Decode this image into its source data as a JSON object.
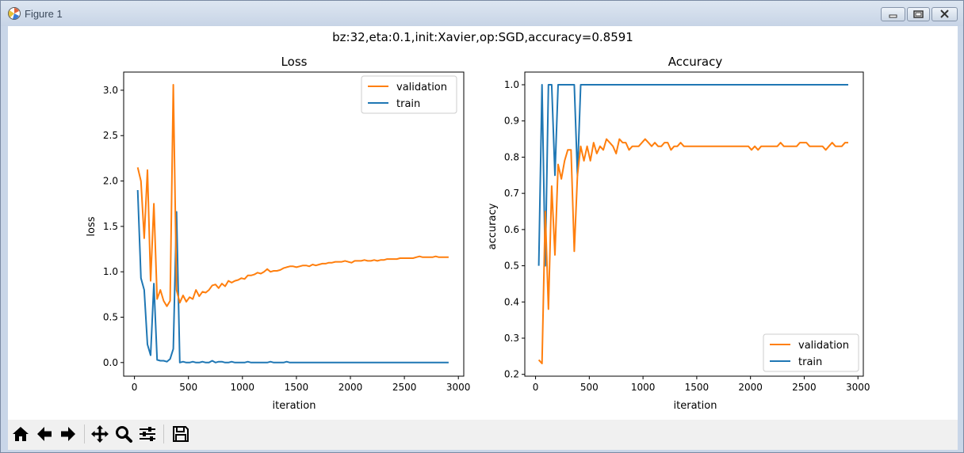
{
  "window": {
    "title": "Figure 1",
    "minimize_icon": "minimize-icon",
    "maximize_icon": "restore-icon",
    "close_icon": "close-icon"
  },
  "figure": {
    "suptitle": "bz:32,eta:0.1,init:Xavier,op:SGD,accuracy=0.8591"
  },
  "toolbar": {
    "buttons": [
      "home-icon",
      "back-arrow-icon",
      "forward-arrow-icon",
      "pan-icon",
      "zoom-icon",
      "configure-subplots-icon",
      "save-icon"
    ]
  },
  "chart_data": [
    {
      "type": "line",
      "title": "Loss",
      "xlabel": "iteration",
      "ylabel": "loss",
      "xlim": [
        -100,
        3050
      ],
      "ylim": [
        -0.15,
        3.2
      ],
      "xticks": [
        0,
        500,
        1000,
        1500,
        2000,
        2500,
        3000
      ],
      "yticks": [
        0.0,
        0.5,
        1.0,
        1.5,
        2.0,
        2.5,
        3.0
      ],
      "xtick_labels": [
        "0",
        "500",
        "1000",
        "1500",
        "2000",
        "2500",
        "3000"
      ],
      "ytick_labels": [
        "0.0",
        "0.5",
        "1.0",
        "1.5",
        "2.0",
        "2.5",
        "3.0"
      ],
      "legend_position": "top-right",
      "legend_order": [
        "validation",
        "train"
      ],
      "series": [
        {
          "name": "validation",
          "color": "#ff7f0e",
          "x": [
            30,
            60,
            90,
            120,
            150,
            180,
            210,
            240,
            270,
            300,
            330,
            360,
            390,
            420,
            450,
            480,
            510,
            540,
            570,
            600,
            630,
            660,
            690,
            720,
            750,
            780,
            810,
            840,
            870,
            900,
            930,
            960,
            990,
            1020,
            1050,
            1080,
            1110,
            1140,
            1170,
            1200,
            1230,
            1260,
            1290,
            1320,
            1350,
            1380,
            1410,
            1440,
            1470,
            1500,
            1530,
            1560,
            1590,
            1620,
            1650,
            1680,
            1710,
            1740,
            1770,
            1800,
            1830,
            1860,
            1890,
            1920,
            1950,
            1980,
            2010,
            2040,
            2070,
            2100,
            2130,
            2160,
            2190,
            2220,
            2250,
            2280,
            2310,
            2340,
            2370,
            2400,
            2430,
            2460,
            2490,
            2520,
            2550,
            2580,
            2610,
            2640,
            2670,
            2700,
            2730,
            2760,
            2790,
            2820,
            2850,
            2880,
            2910
          ],
          "values": [
            2.15,
            2.0,
            1.37,
            2.12,
            0.9,
            1.75,
            0.7,
            0.8,
            0.68,
            0.62,
            0.68,
            3.06,
            0.8,
            0.66,
            0.74,
            0.67,
            0.72,
            0.7,
            0.8,
            0.73,
            0.78,
            0.77,
            0.8,
            0.85,
            0.86,
            0.82,
            0.87,
            0.84,
            0.9,
            0.88,
            0.9,
            0.91,
            0.93,
            0.92,
            0.96,
            0.96,
            0.97,
            0.99,
            0.98,
            1.0,
            1.03,
            1.0,
            1.01,
            1.01,
            1.02,
            1.04,
            1.05,
            1.06,
            1.06,
            1.05,
            1.06,
            1.07,
            1.07,
            1.06,
            1.08,
            1.07,
            1.08,
            1.09,
            1.09,
            1.1,
            1.1,
            1.11,
            1.11,
            1.11,
            1.12,
            1.11,
            1.1,
            1.12,
            1.12,
            1.12,
            1.13,
            1.12,
            1.12,
            1.13,
            1.12,
            1.13,
            1.13,
            1.14,
            1.14,
            1.14,
            1.14,
            1.15,
            1.15,
            1.15,
            1.15,
            1.15,
            1.16,
            1.17,
            1.16,
            1.16,
            1.16,
            1.16,
            1.17,
            1.16,
            1.16,
            1.16,
            1.16
          ]
        },
        {
          "name": "train",
          "color": "#1f77b4",
          "x": [
            30,
            60,
            90,
            120,
            150,
            180,
            210,
            240,
            270,
            300,
            330,
            360,
            390,
            420,
            450,
            480,
            510,
            540,
            570,
            600,
            630,
            660,
            690,
            720,
            750,
            780,
            810,
            840,
            870,
            900,
            930,
            960,
            990,
            1020,
            1050,
            1080,
            1110,
            1140,
            1170,
            1200,
            1230,
            1260,
            1290,
            1320,
            1350,
            1380,
            1410,
            1440,
            1470,
            1500,
            1530,
            1560,
            1590,
            1620,
            1650,
            1680,
            1710,
            1740,
            1770,
            1800,
            1830,
            1860,
            1890,
            1920,
            1950,
            1980,
            2010,
            2040,
            2070,
            2100,
            2130,
            2160,
            2190,
            2220,
            2250,
            2280,
            2310,
            2340,
            2370,
            2400,
            2430,
            2460,
            2490,
            2520,
            2550,
            2580,
            2610,
            2640,
            2670,
            2700,
            2730,
            2760,
            2790,
            2820,
            2850,
            2880,
            2910
          ],
          "values": [
            1.9,
            0.93,
            0.8,
            0.2,
            0.08,
            0.87,
            0.03,
            0.02,
            0.02,
            0.01,
            0.04,
            0.15,
            1.66,
            0.0,
            0.01,
            0.0,
            0.0,
            0.01,
            0.0,
            0.0,
            0.01,
            0.0,
            0.0,
            0.02,
            0.0,
            0.01,
            0.01,
            0.0,
            0.0,
            0.01,
            0.0,
            0.0,
            0.0,
            0.0,
            0.01,
            0.0,
            0.0,
            0.0,
            0.0,
            0.0,
            0.0,
            0.01,
            0.0,
            0.0,
            0.0,
            0.0,
            0.01,
            0.0,
            0.0,
            0.0,
            0.0,
            0.0,
            0.0,
            0.0,
            0.0,
            0.0,
            0.0,
            0.0,
            0.0,
            0.0,
            0.0,
            0.0,
            0.0,
            0.0,
            0.0,
            0.0,
            0.0,
            0.0,
            0.0,
            0.0,
            0.0,
            0.0,
            0.0,
            0.0,
            0.0,
            0.0,
            0.0,
            0.0,
            0.0,
            0.0,
            0.0,
            0.0,
            0.0,
            0.0,
            0.0,
            0.0,
            0.0,
            0.0,
            0.0,
            0.0,
            0.0,
            0.0,
            0.0,
            0.0,
            0.0,
            0.0,
            0.0
          ]
        }
      ]
    },
    {
      "type": "line",
      "title": "Accuracy",
      "xlabel": "iteration",
      "ylabel": "accuracy",
      "xlim": [
        -100,
        3050
      ],
      "ylim": [
        0.195,
        1.035
      ],
      "xticks": [
        0,
        500,
        1000,
        1500,
        2000,
        2500,
        3000
      ],
      "yticks": [
        0.2,
        0.3,
        0.4,
        0.5,
        0.6,
        0.7,
        0.8,
        0.9,
        1.0
      ],
      "xtick_labels": [
        "0",
        "500",
        "1000",
        "1500",
        "2000",
        "2500",
        "3000"
      ],
      "ytick_labels": [
        "0.2",
        "0.3",
        "0.4",
        "0.5",
        "0.6",
        "0.7",
        "0.8",
        "0.9",
        "1.0"
      ],
      "legend_position": "bottom-right",
      "legend_order": [
        "validation",
        "train"
      ],
      "series": [
        {
          "name": "validation",
          "color": "#ff7f0e",
          "x": [
            30,
            60,
            90,
            120,
            150,
            180,
            210,
            240,
            270,
            300,
            330,
            360,
            390,
            420,
            450,
            480,
            510,
            540,
            570,
            600,
            630,
            660,
            690,
            720,
            750,
            780,
            810,
            840,
            870,
            900,
            930,
            960,
            990,
            1020,
            1050,
            1080,
            1110,
            1140,
            1170,
            1200,
            1230,
            1260,
            1290,
            1320,
            1350,
            1380,
            1410,
            1440,
            1470,
            1500,
            1530,
            1560,
            1590,
            1620,
            1650,
            1680,
            1710,
            1740,
            1770,
            1800,
            1830,
            1860,
            1890,
            1920,
            1950,
            1980,
            2010,
            2040,
            2070,
            2100,
            2130,
            2160,
            2190,
            2220,
            2250,
            2280,
            2310,
            2340,
            2370,
            2400,
            2430,
            2460,
            2490,
            2520,
            2550,
            2580,
            2610,
            2640,
            2670,
            2700,
            2730,
            2760,
            2790,
            2820,
            2850,
            2880,
            2910
          ],
          "values": [
            0.24,
            0.23,
            0.65,
            0.38,
            0.72,
            0.53,
            0.78,
            0.74,
            0.79,
            0.82,
            0.82,
            0.54,
            0.75,
            0.83,
            0.79,
            0.83,
            0.79,
            0.84,
            0.81,
            0.83,
            0.82,
            0.85,
            0.84,
            0.83,
            0.81,
            0.85,
            0.84,
            0.84,
            0.82,
            0.83,
            0.83,
            0.83,
            0.84,
            0.85,
            0.84,
            0.83,
            0.84,
            0.83,
            0.83,
            0.84,
            0.84,
            0.82,
            0.83,
            0.83,
            0.84,
            0.83,
            0.83,
            0.83,
            0.83,
            0.83,
            0.83,
            0.83,
            0.83,
            0.83,
            0.83,
            0.83,
            0.83,
            0.83,
            0.83,
            0.83,
            0.83,
            0.83,
            0.83,
            0.83,
            0.83,
            0.83,
            0.82,
            0.83,
            0.82,
            0.83,
            0.83,
            0.83,
            0.83,
            0.83,
            0.83,
            0.84,
            0.83,
            0.83,
            0.83,
            0.83,
            0.83,
            0.84,
            0.84,
            0.84,
            0.83,
            0.83,
            0.83,
            0.83,
            0.83,
            0.82,
            0.83,
            0.84,
            0.83,
            0.83,
            0.83,
            0.84,
            0.84
          ]
        },
        {
          "name": "train",
          "color": "#1f77b4",
          "x": [
            30,
            60,
            90,
            120,
            150,
            180,
            210,
            240,
            270,
            300,
            330,
            360,
            390,
            420,
            450,
            480,
            510,
            540,
            570,
            600,
            630,
            660,
            690,
            720,
            750,
            780,
            810,
            840,
            870,
            900,
            930,
            960,
            990,
            1020,
            1050,
            1080,
            1110,
            1140,
            1170,
            1200,
            1230,
            1260,
            1290,
            1320,
            1350,
            1380,
            1410,
            1440,
            1470,
            1500,
            1530,
            1560,
            1590,
            1620,
            1650,
            1680,
            1710,
            1740,
            1770,
            1800,
            1830,
            1860,
            1890,
            1920,
            1950,
            1980,
            2010,
            2040,
            2070,
            2100,
            2130,
            2160,
            2190,
            2220,
            2250,
            2280,
            2310,
            2340,
            2370,
            2400,
            2430,
            2460,
            2490,
            2520,
            2550,
            2580,
            2610,
            2640,
            2670,
            2700,
            2730,
            2760,
            2790,
            2820,
            2850,
            2880,
            2910
          ],
          "values": [
            0.5,
            1.0,
            0.5,
            1.0,
            1.0,
            0.75,
            1.0,
            1.0,
            1.0,
            1.0,
            1.0,
            1.0,
            0.75,
            1.0,
            1.0,
            1.0,
            1.0,
            1.0,
            1.0,
            1.0,
            1.0,
            1.0,
            1.0,
            1.0,
            1.0,
            1.0,
            1.0,
            1.0,
            1.0,
            1.0,
            1.0,
            1.0,
            1.0,
            1.0,
            1.0,
            1.0,
            1.0,
            1.0,
            1.0,
            1.0,
            1.0,
            1.0,
            1.0,
            1.0,
            1.0,
            1.0,
            1.0,
            1.0,
            1.0,
            1.0,
            1.0,
            1.0,
            1.0,
            1.0,
            1.0,
            1.0,
            1.0,
            1.0,
            1.0,
            1.0,
            1.0,
            1.0,
            1.0,
            1.0,
            1.0,
            1.0,
            1.0,
            1.0,
            1.0,
            1.0,
            1.0,
            1.0,
            1.0,
            1.0,
            1.0,
            1.0,
            1.0,
            1.0,
            1.0,
            1.0,
            1.0,
            1.0,
            1.0,
            1.0,
            1.0,
            1.0,
            1.0,
            1.0,
            1.0,
            1.0,
            1.0,
            1.0,
            1.0,
            1.0,
            1.0,
            1.0,
            1.0
          ]
        }
      ]
    }
  ]
}
